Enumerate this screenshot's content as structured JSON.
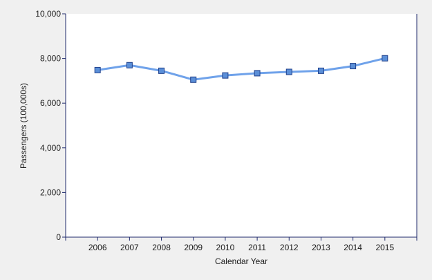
{
  "chart_data": {
    "type": "line",
    "title": "",
    "xlabel": "Calendar Year",
    "ylabel": "Passengers (100,000s)",
    "x": [
      "2006",
      "2007",
      "2008",
      "2009",
      "2010",
      "2011",
      "2012",
      "2013",
      "2014",
      "2015"
    ],
    "series": [
      {
        "values": [
          7480,
          7700,
          7450,
          7050,
          7240,
          7340,
          7400,
          7450,
          7660,
          8010
        ]
      }
    ],
    "ylim": [
      0,
      10000
    ],
    "yticks": [
      "0",
      "2,000",
      "4,000",
      "6,000",
      "8,000",
      "10,000"
    ],
    "grid": false,
    "legend": "none"
  },
  "colors": {
    "background": "#f0f0f0",
    "plot_area": "#ffffff",
    "axis": "#1f2a6b",
    "line": "#6fa2ea",
    "marker_fill": "#5b8fd8",
    "marker_stroke": "#1f3f8a"
  }
}
